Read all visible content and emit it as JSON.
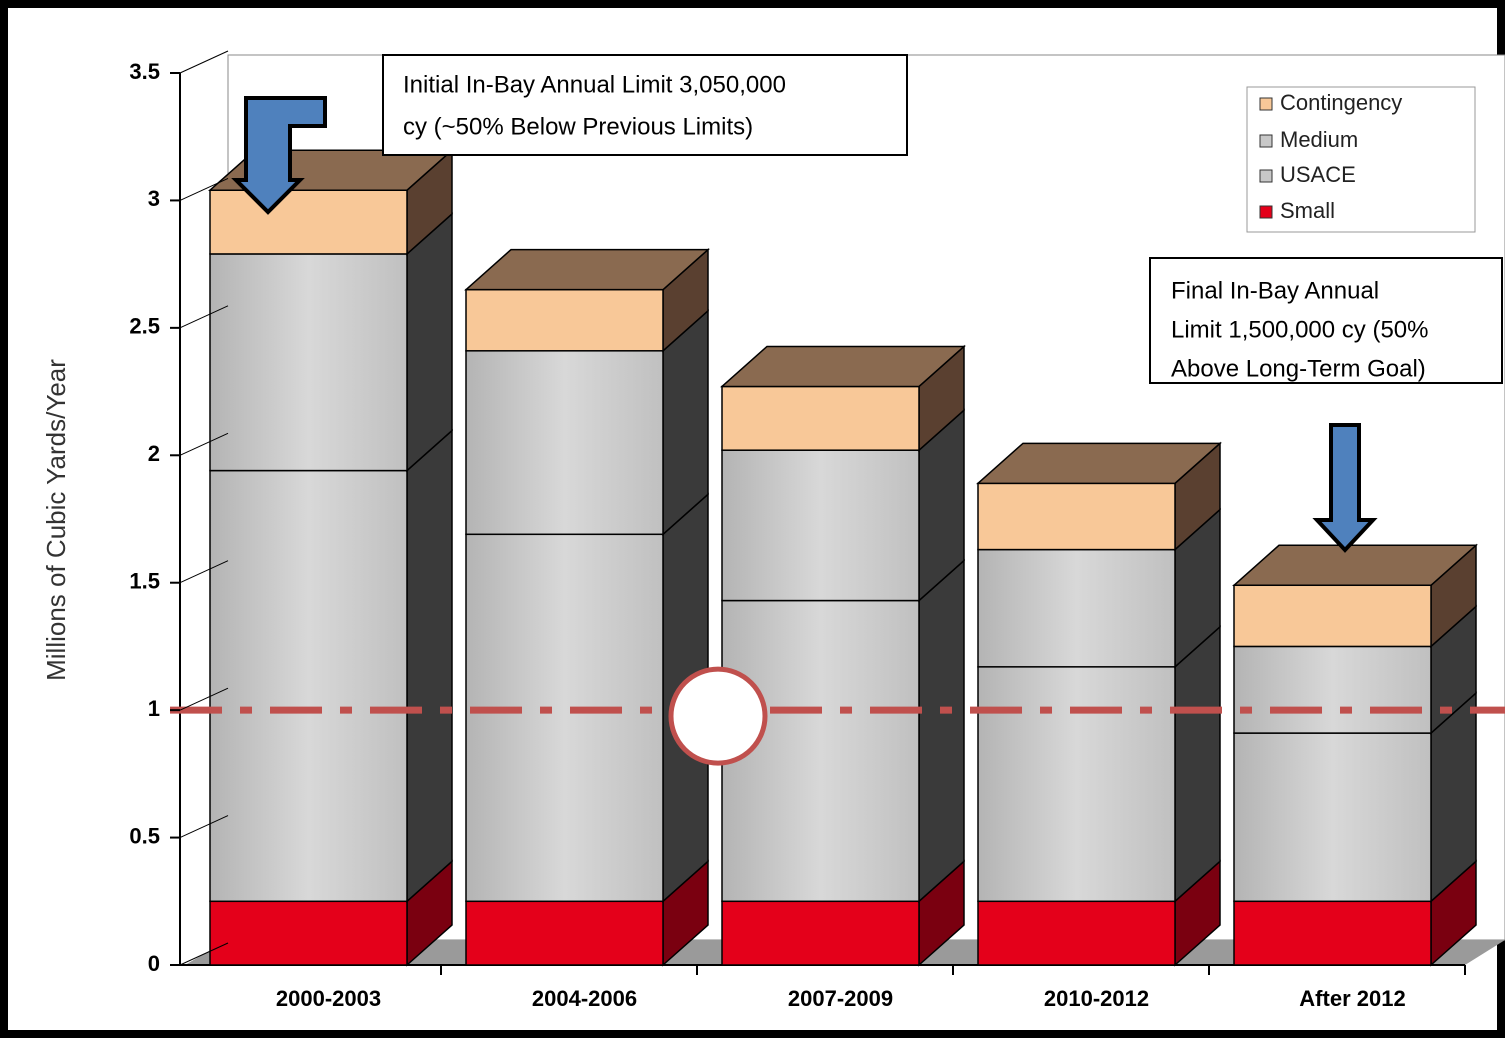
{
  "chart_data": {
    "type": "bar3d_stacked",
    "y_label": "Millions of Cubic Yards/Year",
    "categories": [
      "2000-2003",
      "2004-2006",
      "2007-2009",
      "2010-2012",
      "After 2012"
    ],
    "series": [
      {
        "name": "Small",
        "color": "#e4001a",
        "side": "#7a0010",
        "values": [
          0.25,
          0.25,
          0.25,
          0.25,
          0.25
        ]
      },
      {
        "name": "USACE",
        "color": "#c8c8c8",
        "side": "#3a3a3a",
        "values": [
          1.69,
          1.44,
          1.18,
          0.92,
          0.66
        ]
      },
      {
        "name": "Medium",
        "color": "#c8c8c8",
        "side": "#3a3a3a",
        "values": [
          0.85,
          0.72,
          0.59,
          0.46,
          0.34
        ]
      },
      {
        "name": "Contingency",
        "color": "#f8c898",
        "side": "#5a4030",
        "values": [
          0.25,
          0.24,
          0.25,
          0.26,
          0.24
        ]
      }
    ],
    "ylim": [
      0,
      3.5
    ],
    "yticks": [
      0,
      0.5,
      1,
      1.5,
      2,
      2.5,
      3,
      3.5
    ],
    "legend": "top-right",
    "reference_line": {
      "value": 1,
      "color": "#c0504d"
    },
    "annotations": [
      {
        "lines": [
          "Initial In-Bay Annual Limit 3,050,000",
          "cy (~50% Below Previous Limits)"
        ]
      },
      {
        "lines": [
          "Final In-Bay Annual",
          "Limit 1,500,000 cy (50%",
          "Above Long-Term Goal)"
        ]
      }
    ]
  }
}
